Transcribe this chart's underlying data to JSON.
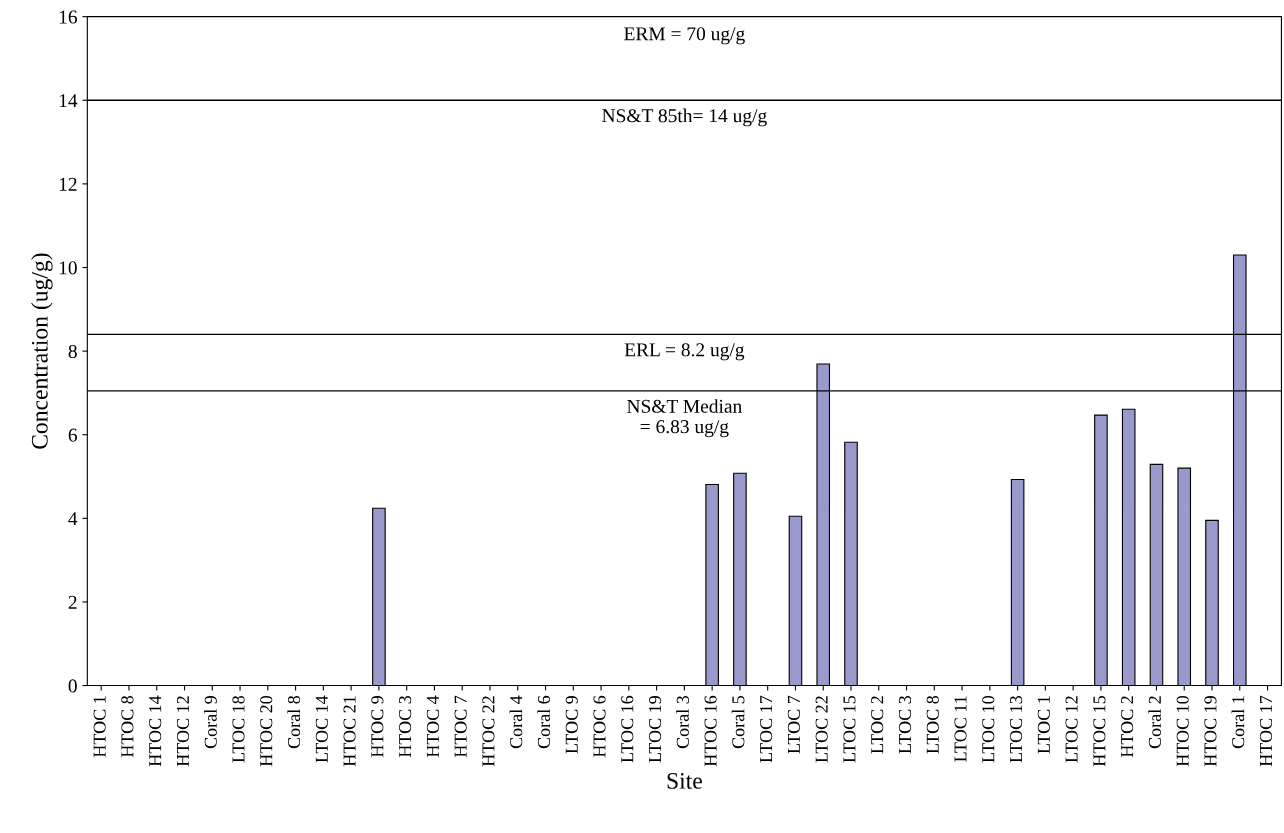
{
  "chart_data": {
    "type": "bar",
    "xlabel": "Site",
    "ylabel": "Concentration (ug/g)",
    "categories": [
      "HTOC 1",
      "HTOC 8",
      "HTOC 14",
      "HTOC 12",
      "Coral 9",
      "LTOC 18",
      "HTOC 20",
      "Coral 8",
      "LTOC 14",
      "HTOC 21",
      "HTOC 9",
      "HTOC 3",
      "HTOC 4",
      "HTOC 7",
      "HTOC 22",
      "Coral 4",
      "Coral 6",
      "LTOC 9",
      "HTOC 6",
      "LTOC 16",
      "LTOC 19",
      "Coral 3",
      "HTOC 16",
      "Coral 5",
      "LTOC 17",
      "LTOC 7",
      "LTOC 22",
      "LTOC 15",
      "LTOC 2",
      "LTOC 3",
      "LTOC 8",
      "LTOC 11",
      "LTOC 10",
      "LTOC 13",
      "LTOC 1",
      "LTOC 12",
      "HTOC 15",
      "HTOC 2",
      "Coral 2",
      "HTOC 10",
      "HTOC 19",
      "Coral 1",
      "HTOC 17"
    ],
    "values": [
      null,
      null,
      null,
      null,
      null,
      null,
      null,
      null,
      null,
      null,
      4.24,
      null,
      null,
      null,
      null,
      null,
      null,
      null,
      null,
      null,
      null,
      null,
      4.81,
      5.08,
      null,
      4.05,
      7.69,
      5.82,
      null,
      null,
      null,
      null,
      null,
      4.93,
      null,
      null,
      6.47,
      6.61,
      5.29,
      5.2,
      3.95,
      10.3,
      null
    ],
    "color": "#9999cc",
    "ylim": [
      0,
      16
    ],
    "yticks": [
      0,
      2,
      4,
      6,
      8,
      10,
      12,
      14,
      16
    ],
    "grid": false,
    "ref_lines": [
      {
        "axis": "y",
        "value": 14,
        "label": "NS&T 85th= 14 ug/g",
        "color": "#000000"
      },
      {
        "axis": "y",
        "value": 8.4,
        "color": "#000000"
      },
      {
        "axis": "y",
        "value": 7.05,
        "color": "#000000"
      }
    ],
    "annotations": [
      "ERM = 70 ug/g",
      {
        "text": "ERL = 8.2 ug/g",
        "y": 8.4
      },
      {
        "text": "NS&T Median\n= 6.83 ug/g",
        "y": 7.05
      }
    ]
  }
}
